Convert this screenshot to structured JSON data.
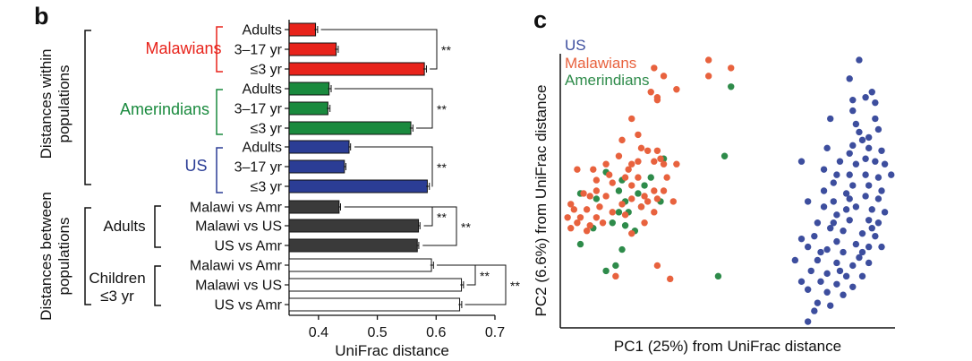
{
  "panel_b_label": "b",
  "panel_c_label": "c",
  "colors": {
    "malawi": "#e8231b",
    "amerindian": "#1a8a3e",
    "us": "#2b3d95",
    "between_adults": "#3a3a3a",
    "between_children": "#ffffff",
    "scatter_malawi": "#e8623e",
    "scatter_amerindian": "#2e8b4a",
    "scatter_us": "#3d4e9e"
  },
  "chart_data": [
    {
      "type": "bar",
      "orientation": "horizontal",
      "xlabel": "UniFrac distance",
      "xlim": [
        0.35,
        0.7
      ],
      "xticks": [
        "0.4",
        "0.5",
        "0.6",
        "0.7"
      ],
      "group_labels": {
        "within": "Distances within populations",
        "between": "Distances between populations"
      },
      "subgroups": [
        {
          "label": "Malawians",
          "color_key": "malawi"
        },
        {
          "label": "Amerindians",
          "color_key": "amerindian"
        },
        {
          "label": "US",
          "color_key": "us"
        },
        {
          "label": "Adults",
          "color_key": "between_adults"
        },
        {
          "label": "Children\n≤3 yr",
          "color_key": "between_children"
        }
      ],
      "bars": [
        {
          "label": "Adults",
          "value": 0.395,
          "error": 0.002,
          "subgroup": 0
        },
        {
          "label": "3–17 yr",
          "value": 0.43,
          "error": 0.002,
          "subgroup": 0
        },
        {
          "label": "≤3 yr",
          "value": 0.58,
          "error": 0.002,
          "subgroup": 0
        },
        {
          "label": "Adults",
          "value": 0.418,
          "error": 0.002,
          "subgroup": 1
        },
        {
          "label": "3–17 yr",
          "value": 0.416,
          "error": 0.002,
          "subgroup": 1
        },
        {
          "label": "≤3 yr",
          "value": 0.557,
          "error": 0.002,
          "subgroup": 1
        },
        {
          "label": "Adults",
          "value": 0.452,
          "error": 0.001,
          "subgroup": 2
        },
        {
          "label": "3–17 yr",
          "value": 0.444,
          "error": 0.001,
          "subgroup": 2
        },
        {
          "label": "≤3 yr",
          "value": 0.585,
          "error": 0.002,
          "subgroup": 2
        },
        {
          "label": "Malawi vs Amr",
          "value": 0.435,
          "error": 0.001,
          "subgroup": 3
        },
        {
          "label": "Malawi vs US",
          "value": 0.57,
          "error": 0.001,
          "subgroup": 3
        },
        {
          "label": "US vs Amr",
          "value": 0.568,
          "error": 0.001,
          "subgroup": 3
        },
        {
          "label": "Malawi vs Amr",
          "value": 0.592,
          "error": 0.002,
          "subgroup": 4
        },
        {
          "label": "Malawi vs US",
          "value": 0.643,
          "error": 0.002,
          "subgroup": 4
        },
        {
          "label": "US vs Amr",
          "value": 0.64,
          "error": 0.002,
          "subgroup": 4
        }
      ],
      "significance": [
        {
          "from": 0,
          "to": 2,
          "label": "**"
        },
        {
          "from": 3,
          "to": 5,
          "label": "**"
        },
        {
          "from": 6,
          "to": 8,
          "label": "**"
        },
        {
          "from": 9,
          "to": 10,
          "label": "**"
        },
        {
          "from": 9,
          "to": 11,
          "label": "**"
        },
        {
          "from": 12,
          "to": 13,
          "label": "**"
        },
        {
          "from": 12,
          "to": 14,
          "label": "**"
        }
      ]
    },
    {
      "type": "scatter",
      "xlabel": "PC1 (25%) from UniFrac distance",
      "ylabel": "PC2 (6.6%) from UniFrac distance",
      "xlim": [
        0,
        100
      ],
      "ylim": [
        0,
        100
      ],
      "legend_position": "top-left",
      "series": [
        {
          "name": "Malawians",
          "color_key": "scatter_malawi",
          "points": [
            [
              29,
              96
            ],
            [
              46,
              99
            ],
            [
              53,
              96
            ],
            [
              28,
              87
            ],
            [
              32,
              93
            ],
            [
              30,
              84
            ],
            [
              36,
              88
            ],
            [
              46,
              93
            ],
            [
              30,
              85
            ],
            [
              22,
              77
            ],
            [
              24,
              71
            ],
            [
              19,
              69
            ],
            [
              27,
              65
            ],
            [
              25,
              66
            ],
            [
              18,
              63
            ],
            [
              30,
              65
            ],
            [
              24,
              61
            ],
            [
              29,
              61
            ],
            [
              31,
              62
            ],
            [
              22,
              60
            ],
            [
              32,
              60
            ],
            [
              36,
              60
            ],
            [
              5,
              58
            ],
            [
              10,
              58
            ],
            [
              21,
              58
            ],
            [
              15,
              56
            ],
            [
              24,
              55
            ],
            [
              20,
              55
            ],
            [
              11,
              54
            ],
            [
              16,
              53
            ],
            [
              22,
              52
            ],
            [
              29,
              50
            ],
            [
              33,
              55
            ],
            [
              26,
              48
            ],
            [
              9,
              48
            ],
            [
              14,
              48
            ],
            [
              22,
              47
            ],
            [
              27,
              46
            ],
            [
              30,
              47
            ],
            [
              35,
              46
            ],
            [
              3,
              45
            ],
            [
              8,
              43
            ],
            [
              12,
              44
            ],
            [
              16,
              42
            ],
            [
              20,
              41
            ],
            [
              2,
              40
            ],
            [
              6,
              40
            ],
            [
              11,
              40
            ],
            [
              5,
              38
            ],
            [
              9,
              37
            ],
            [
              3,
              36
            ],
            [
              8,
              35
            ],
            [
              26,
              38
            ],
            [
              22,
              34
            ],
            [
              30,
              22
            ],
            [
              17,
              18
            ],
            [
              34,
              17
            ],
            [
              4,
              43
            ],
            [
              13,
              38
            ],
            [
              25,
              44
            ],
            [
              29,
              42
            ],
            [
              32,
              50
            ],
            [
              19,
              45
            ],
            [
              14,
              60
            ],
            [
              7,
              49
            ],
            [
              11,
              50
            ]
          ]
        },
        {
          "name": "Amerindians",
          "color_key": "scatter_amerindian",
          "points": [
            [
              53,
              89
            ],
            [
              51,
              63
            ],
            [
              32,
              62
            ],
            [
              14,
              57
            ],
            [
              28,
              55
            ],
            [
              19,
              54
            ],
            [
              26,
              52
            ],
            [
              6,
              49
            ],
            [
              18,
              50
            ],
            [
              24,
              49
            ],
            [
              11,
              47
            ],
            [
              20,
              46
            ],
            [
              31,
              46
            ],
            [
              25,
              44
            ],
            [
              18,
              42
            ],
            [
              16,
              38
            ],
            [
              20,
              37
            ],
            [
              6,
              30
            ],
            [
              19,
              28
            ],
            [
              17,
              22
            ],
            [
              14,
              20
            ],
            [
              49,
              18
            ],
            [
              23,
              35
            ],
            [
              10,
              36
            ],
            [
              21,
              42
            ]
          ]
        },
        {
          "name": "US",
          "color_key": "scatter_us",
          "points": [
            [
              93,
              99
            ],
            [
              90,
              92
            ],
            [
              95,
              85
            ],
            [
              97,
              87
            ],
            [
              91,
              84
            ],
            [
              98,
              83
            ],
            [
              91,
              80
            ],
            [
              84,
              77
            ],
            [
              98,
              77
            ],
            [
              99,
              73
            ],
            [
              93,
              72
            ],
            [
              94,
              69
            ],
            [
              91,
              67
            ],
            [
              96,
              66
            ],
            [
              83,
              66
            ],
            [
              90,
              64
            ],
            [
              87,
              61
            ],
            [
              92,
              60
            ],
            [
              98,
              61
            ],
            [
              101,
              60
            ],
            [
              75,
              61
            ],
            [
              82,
              58
            ],
            [
              86,
              56
            ],
            [
              90,
              56
            ],
            [
              95,
              56
            ],
            [
              99,
              55
            ],
            [
              103,
              56
            ],
            [
              85,
              53
            ],
            [
              91,
              52
            ],
            [
              96,
              52
            ],
            [
              100,
              50
            ],
            [
              89,
              49
            ],
            [
              95,
              48
            ],
            [
              99,
              47
            ],
            [
              85,
              46
            ],
            [
              77,
              46
            ],
            [
              82,
              44
            ],
            [
              92,
              44
            ],
            [
              97,
              43
            ],
            [
              101,
              42
            ],
            [
              86,
              41
            ],
            [
              90,
              39
            ],
            [
              96,
              39
            ],
            [
              99,
              38
            ],
            [
              80,
              38
            ],
            [
              84,
              36
            ],
            [
              88,
              35
            ],
            [
              94,
              34
            ],
            [
              98,
              33
            ],
            [
              79,
              33
            ],
            [
              86,
              31
            ],
            [
              92,
              30
            ],
            [
              96,
              29
            ],
            [
              100,
              29
            ],
            [
              77,
              29
            ],
            [
              83,
              28
            ],
            [
              88,
              27
            ],
            [
              94,
              27
            ],
            [
              80,
              24
            ],
            [
              86,
              23
            ],
            [
              91,
              22
            ],
            [
              96,
              23
            ],
            [
              78,
              20
            ],
            [
              83,
              19
            ],
            [
              89,
              18
            ],
            [
              94,
              18
            ],
            [
              75,
              16
            ],
            [
              81,
              16
            ],
            [
              86,
              15
            ],
            [
              91,
              14
            ],
            [
              77,
              13
            ],
            [
              83,
              12
            ],
            [
              88,
              11
            ],
            [
              80,
              8
            ],
            [
              84,
              7
            ],
            [
              79,
              5
            ],
            [
              77,
              1
            ],
            [
              73,
              24
            ],
            [
              75,
              32
            ],
            [
              81,
              27
            ],
            [
              90,
              47
            ],
            [
              85,
              38
            ],
            [
              93,
              25
            ],
            [
              87,
              20
            ],
            [
              97,
              36
            ],
            [
              82,
              50
            ],
            [
              89,
              43
            ],
            [
              95,
              62
            ],
            [
              100,
              65
            ],
            [
              92,
              75
            ],
            [
              96,
              70
            ]
          ]
        }
      ]
    }
  ]
}
